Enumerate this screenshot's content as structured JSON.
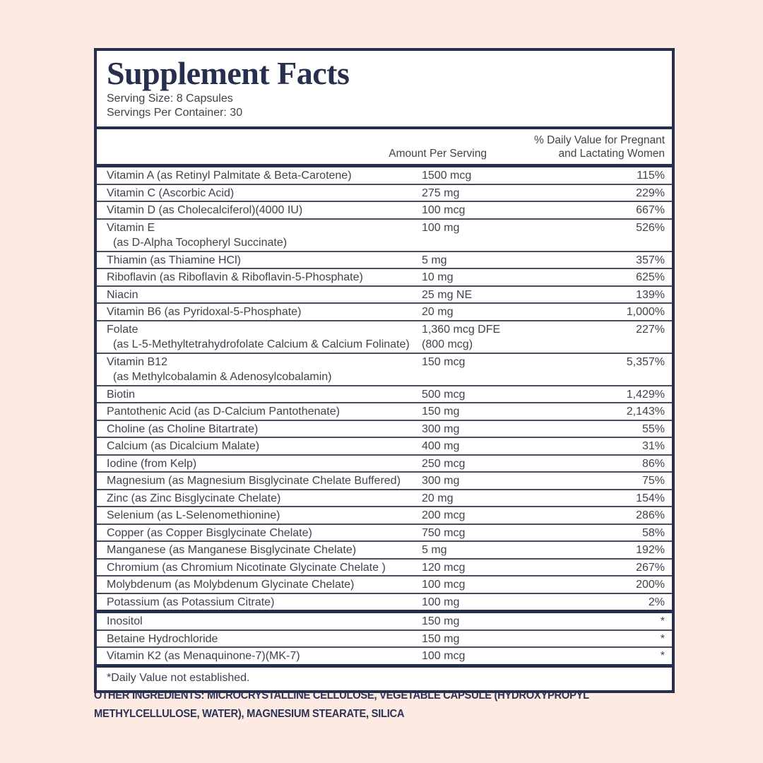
{
  "colors": {
    "background_pink": "#fdeae3",
    "panel_white": "#ffffff",
    "navy": "#272f4e",
    "body_text": "#3f434b",
    "row_line": "#474b5e"
  },
  "panel": {
    "title": "Supplement Facts",
    "serving_size": "Serving Size: 8 Capsules",
    "servings_per_container": "Servings Per Container: 30",
    "columns": {
      "amount": "Amount Per Serving",
      "dv_line1": "% Daily Value for Pregnant",
      "dv_line2": "and Lactating Women"
    },
    "rows": [
      {
        "name": "Vitamin A (as Retinyl Palmitate & Beta-Carotene)",
        "amount": "1500 mcg",
        "dv": "115%"
      },
      {
        "name": "Vitamin C (Ascorbic Acid)",
        "amount": "275 mg",
        "dv": "229%"
      },
      {
        "name": "Vitamin D (as Cholecalciferol)(4000 IU)",
        "amount": "100 mcg",
        "dv": "667%"
      },
      {
        "name": "Vitamin E",
        "name2": "(as D-Alpha Tocopheryl Succinate)",
        "amount": "100 mg",
        "dv": "526%"
      },
      {
        "name": "Thiamin (as Thiamine HCl)",
        "amount": "5 mg",
        "dv": "357%"
      },
      {
        "name": "Riboflavin (as Riboflavin & Riboflavin-5-Phosphate)",
        "amount": "10 mg",
        "dv": "625%"
      },
      {
        "name": "Niacin",
        "amount": "25 mg NE",
        "dv": "139%"
      },
      {
        "name": "Vitamin B6 (as Pyridoxal-5-Phosphate)",
        "amount": "20 mg",
        "dv": "1,000%"
      },
      {
        "name": "Folate",
        "name2": "(as L-5-Methyltetrahydrofolate Calcium & Calcium Folinate)",
        "amount": "1,360 mcg DFE",
        "amount2": "(800 mcg)",
        "dv": "227%"
      },
      {
        "name": "Vitamin B12",
        "name2": "(as Methylcobalamin & Adenosylcobalamin)",
        "amount": "150 mcg",
        "dv": "5,357%"
      },
      {
        "name": "Biotin",
        "amount": "500 mcg",
        "dv": "1,429%"
      },
      {
        "name": "Pantothenic Acid (as D-Calcium Pantothenate)",
        "amount": "150 mg",
        "dv": "2,143%"
      },
      {
        "name": "Choline (as Choline Bitartrate)",
        "amount": "300 mg",
        "dv": "55%"
      },
      {
        "name": "Calcium (as Dicalcium Malate)",
        "amount": "400 mg",
        "dv": "31%"
      },
      {
        "name": "Iodine (from Kelp)",
        "amount": "250 mcg",
        "dv": "86%"
      },
      {
        "name": "Magnesium (as Magnesium Bisglycinate Chelate Buffered)",
        "amount": "300 mg",
        "dv": "75%"
      },
      {
        "name": "Zinc (as Zinc Bisglycinate Chelate)",
        "amount": "20 mg",
        "dv": "154%"
      },
      {
        "name": "Selenium (as L-Selenomethionine)",
        "amount": "200 mcg",
        "dv": "286%"
      },
      {
        "name": "Copper (as Copper Bisglycinate Chelate)",
        "amount": "750 mcg",
        "dv": "58%"
      },
      {
        "name": "Manganese (as Manganese Bisglycinate Chelate)",
        "amount": "5 mg",
        "dv": "192%"
      },
      {
        "name": "Chromium (as Chromium Nicotinate Glycinate Chelate )",
        "amount": "120 mcg",
        "dv": "267%"
      },
      {
        "name": "Molybdenum (as Molybdenum Glycinate Chelate)",
        "amount": "100 mcg",
        "dv": "200%"
      },
      {
        "name": "Potassium (as Potassium Citrate)",
        "amount": "100 mg",
        "dv": "2%"
      }
    ],
    "rows2": [
      {
        "name": "Inositol",
        "amount": "150 mg",
        "dv": "*"
      },
      {
        "name": "Betaine Hydrochloride",
        "amount": "150 mg",
        "dv": "*"
      },
      {
        "name": "Vitamin K2 (as Menaquinone-7)(MK-7)",
        "amount": "100 mcg",
        "dv": "*"
      }
    ],
    "footnote": "*Daily Value not established."
  },
  "other_ingredients": {
    "label": "OTHER INGREDIENTS:",
    "text": " MICROCRYSTALLINE CELLULOSE, VEGETABLE CAPSULE (HYDROXYPROPYL METHYLCELLULOSE, WATER), MAGNESIUM STEARATE, SILICA"
  }
}
